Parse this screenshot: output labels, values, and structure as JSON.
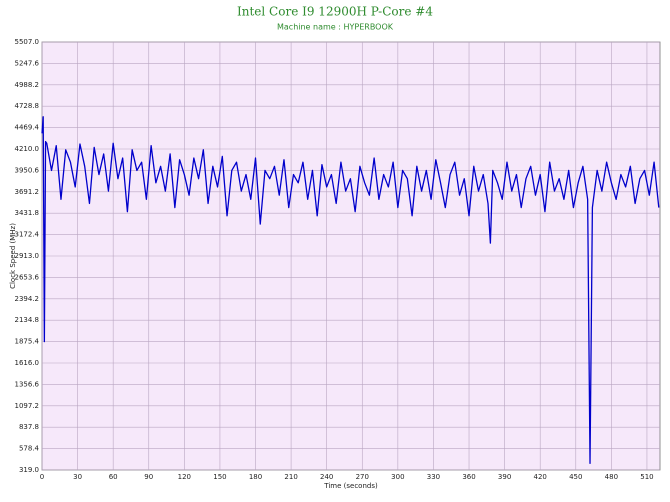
{
  "chart_data": {
    "type": "line",
    "title": "Intel Core I9 12900H P-Core #4",
    "subtitle": "Machine name : HYPERBOOK",
    "x_label": "Time (seconds)",
    "y_label": "Clock Speed (MHz)",
    "xlim": [
      0,
      521
    ],
    "ylim": [
      319.0,
      5507.0
    ],
    "xticks": [
      0,
      30,
      60,
      90,
      120,
      150,
      180,
      210,
      240,
      270,
      300,
      330,
      360,
      390,
      420,
      450,
      480,
      510
    ],
    "yticks": [
      {
        "value": 319.0,
        "label": "319.0"
      },
      578.4,
      837.8,
      1097.2,
      1356.6,
      {
        "value": 1616.0,
        "label": "1616.0"
      },
      1875.4,
      2134.8,
      2394.2,
      2653.6,
      {
        "value": 2913.0,
        "label": "2913.0"
      },
      3172.4,
      3431.8,
      3691.2,
      3950.6,
      {
        "value": 4210.0,
        "label": "4210.0"
      },
      4469.4,
      4728.8,
      4988.2,
      5247.6,
      {
        "value": 5507.0,
        "label": "5507.0"
      }
    ],
    "grid": true,
    "x": [
      0,
      1,
      2,
      3,
      4,
      8,
      12,
      16,
      20,
      24,
      28,
      32,
      36,
      40,
      44,
      48,
      52,
      56,
      60,
      64,
      68,
      72,
      76,
      80,
      84,
      88,
      92,
      96,
      100,
      104,
      108,
      112,
      116,
      120,
      124,
      128,
      132,
      136,
      140,
      144,
      148,
      152,
      156,
      160,
      164,
      168,
      172,
      176,
      180,
      184,
      188,
      192,
      196,
      200,
      204,
      208,
      212,
      216,
      220,
      224,
      228,
      232,
      236,
      240,
      244,
      248,
      252,
      256,
      260,
      264,
      268,
      272,
      276,
      280,
      284,
      288,
      292,
      296,
      300,
      304,
      308,
      312,
      316,
      320,
      324,
      328,
      332,
      336,
      340,
      344,
      348,
      352,
      356,
      360,
      364,
      368,
      372,
      376,
      378,
      380,
      384,
      388,
      392,
      396,
      400,
      404,
      408,
      412,
      416,
      420,
      424,
      428,
      432,
      436,
      440,
      444,
      448,
      452,
      456,
      460,
      462,
      464,
      468,
      472,
      476,
      480,
      484,
      488,
      492,
      496,
      500,
      504,
      508,
      512,
      516,
      520
    ],
    "series": [
      {
        "color": "#0000cc",
        "values": [
          4400,
          4600,
          1875,
          4300,
          4280,
          3950,
          4250,
          3600,
          4200,
          4050,
          3750,
          4270,
          4000,
          3550,
          4230,
          3900,
          4150,
          3700,
          4280,
          3850,
          4100,
          3450,
          4200,
          3950,
          4050,
          3600,
          4250,
          3800,
          4000,
          3700,
          4150,
          3500,
          4080,
          3900,
          3650,
          4100,
          3850,
          4200,
          3550,
          4000,
          3750,
          4120,
          3400,
          3950,
          4050,
          3700,
          3900,
          3600,
          4100,
          3300,
          3950,
          3850,
          4000,
          3650,
          4080,
          3500,
          3900,
          3800,
          4050,
          3600,
          3950,
          3400,
          4020,
          3750,
          3900,
          3550,
          4050,
          3700,
          3850,
          3450,
          4000,
          3800,
          3650,
          4100,
          3600,
          3900,
          3750,
          4050,
          3500,
          3950,
          3850,
          3400,
          4000,
          3700,
          3950,
          3600,
          4080,
          3800,
          3500,
          3900,
          4050,
          3650,
          3850,
          3400,
          4000,
          3700,
          3900,
          3550,
          3070,
          3950,
          3800,
          3600,
          4050,
          3700,
          3900,
          3500,
          3850,
          4000,
          3650,
          3900,
          3450,
          4050,
          3700,
          3850,
          3600,
          3950,
          3500,
          3800,
          4000,
          3600,
          400,
          3500,
          3950,
          3700,
          4050,
          3800,
          3600,
          3900,
          3750,
          4000,
          3550,
          3850,
          3950,
          3650,
          4050,
          3500
        ]
      }
    ]
  }
}
